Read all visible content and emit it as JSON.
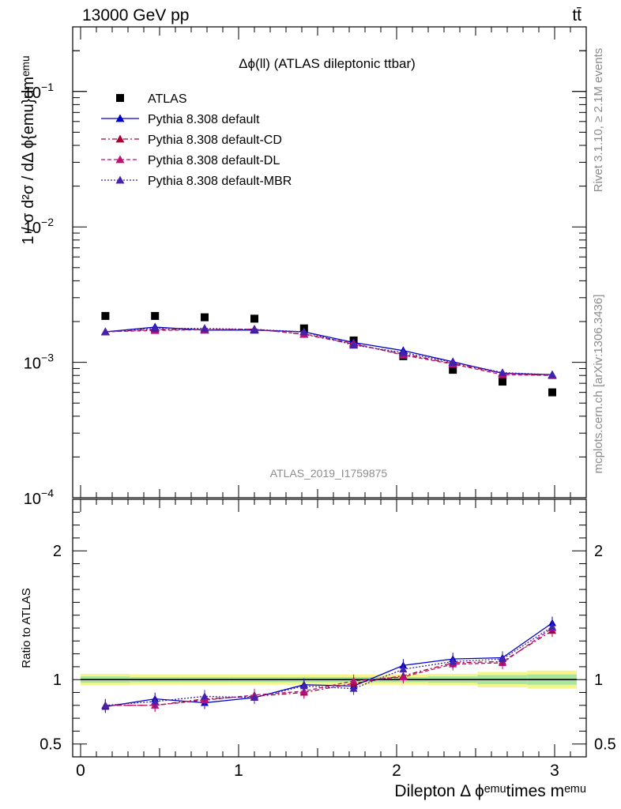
{
  "header": {
    "left": "13000 GeV pp",
    "right": "tt̄"
  },
  "side": {
    "rivet": "Rivet 3.1.10, ≥ 2.1M events",
    "mcplots": "mcplots.cern.ch [arXiv:1306.3436]"
  },
  "chart_data": [
    {
      "type": "line",
      "panel": "main",
      "title": "Δϕ(ll) (ATLAS dileptonic ttbar)",
      "watermark": "ATLAS_2019_I1759875",
      "ylabel": "1 / σ  d²σ / dΔ ϕ{emu}dmᵉᵐᵘ",
      "yscale": "log",
      "ylim": [
        0.0001,
        0.3
      ],
      "xlim": [
        -0.05,
        3.2
      ],
      "yticks": [
        {
          "value": 0.1,
          "base": "10",
          "exp": "−1"
        },
        {
          "value": 0.01,
          "base": "10",
          "exp": "−2"
        },
        {
          "value": 0.001,
          "base": "10",
          "exp": "−3"
        },
        {
          "value": 0.0001,
          "base": "10",
          "exp": "−4"
        }
      ],
      "legend_position": "top-left",
      "x": [
        0.157,
        0.471,
        0.785,
        1.1,
        1.414,
        1.728,
        2.042,
        2.356,
        2.67,
        2.985
      ],
      "series": [
        {
          "name": "ATLAS",
          "marker": "square",
          "color": "#000000",
          "values": [
            0.0022,
            0.0022,
            0.00215,
            0.0021,
            0.00178,
            0.00145,
            0.00111,
            0.00088,
            0.00072,
            0.0006
          ]
        },
        {
          "name": "Pythia 8.308 default",
          "marker": "triangle",
          "color": "#0000cc",
          "dash": "solid",
          "values": [
            0.00168,
            0.00182,
            0.00173,
            0.00173,
            0.00168,
            0.0014,
            0.00122,
            0.00101,
            0.00083,
            0.00081
          ]
        },
        {
          "name": "Pythia 8.308 default-CD",
          "marker": "triangle",
          "color": "#aa0033",
          "dash": "dashdot",
          "values": [
            0.00168,
            0.00175,
            0.00174,
            0.00176,
            0.00161,
            0.00136,
            0.00115,
            0.00098,
            0.00083,
            0.0008
          ]
        },
        {
          "name": "Pythia 8.308 default-DL",
          "marker": "triangle",
          "color": "#bb1177",
          "dash": "dash",
          "values": [
            0.00168,
            0.00172,
            0.00174,
            0.00175,
            0.00162,
            0.00138,
            0.00113,
            0.00097,
            0.00081,
            0.0008
          ]
        },
        {
          "name": "Pythia 8.308 default-MBR",
          "marker": "triangle",
          "color": "#4422aa",
          "dash": "dot",
          "values": [
            0.00168,
            0.00178,
            0.00178,
            0.00175,
            0.00168,
            0.00134,
            0.00118,
            0.001,
            0.00084,
            0.00081
          ]
        }
      ]
    },
    {
      "type": "line",
      "panel": "ratio",
      "ylabel": "Ratio to ATLAS",
      "xlabel": "Dilepton Δ ϕᵉᵐᵘtimes mᵉᵐᵘ",
      "ylim": [
        0.4,
        2.4
      ],
      "xlim": [
        -0.05,
        3.2
      ],
      "yticks": [
        "0.5",
        "1",
        "2"
      ],
      "xticks": [
        "0",
        "1",
        "2",
        "3"
      ],
      "band_yellow": {
        "x_edges": [
          0,
          0.314,
          0.628,
          0.942,
          1.256,
          1.57,
          1.884,
          2.198,
          2.512,
          2.826,
          3.14
        ],
        "half_width": [
          0.045,
          0.04,
          0.04,
          0.04,
          0.04,
          0.04,
          0.04,
          0.045,
          0.06,
          0.07
        ]
      },
      "band_green": {
        "half_width": [
          0.025,
          0.02,
          0.02,
          0.02,
          0.02,
          0.02,
          0.02,
          0.025,
          0.035,
          0.04
        ]
      },
      "x": [
        0.157,
        0.471,
        0.785,
        1.1,
        1.414,
        1.728,
        2.042,
        2.356,
        2.67,
        2.985
      ],
      "series": [
        {
          "name": "Pythia 8.308 default",
          "color": "#0000cc",
          "dash": "solid",
          "values": [
            0.79,
            0.85,
            0.82,
            0.86,
            0.96,
            0.95,
            1.11,
            1.16,
            1.17,
            1.44
          ]
        },
        {
          "name": "Pythia 8.308 default-CD",
          "color": "#aa0033",
          "dash": "dashdot",
          "values": [
            0.8,
            0.8,
            0.85,
            0.87,
            0.9,
            0.97,
            1.03,
            1.13,
            1.14,
            1.38
          ]
        },
        {
          "name": "Pythia 8.308 default-DL",
          "color": "#bb1177",
          "dash": "dash",
          "values": [
            0.8,
            0.8,
            0.84,
            0.88,
            0.91,
            0.99,
            1.02,
            1.12,
            1.13,
            1.4
          ]
        },
        {
          "name": "Pythia 8.308 default-MBR",
          "color": "#4422aa",
          "dash": "dot",
          "values": [
            0.8,
            0.83,
            0.87,
            0.86,
            0.95,
            0.93,
            1.08,
            1.14,
            1.16,
            1.41
          ]
        }
      ]
    }
  ]
}
